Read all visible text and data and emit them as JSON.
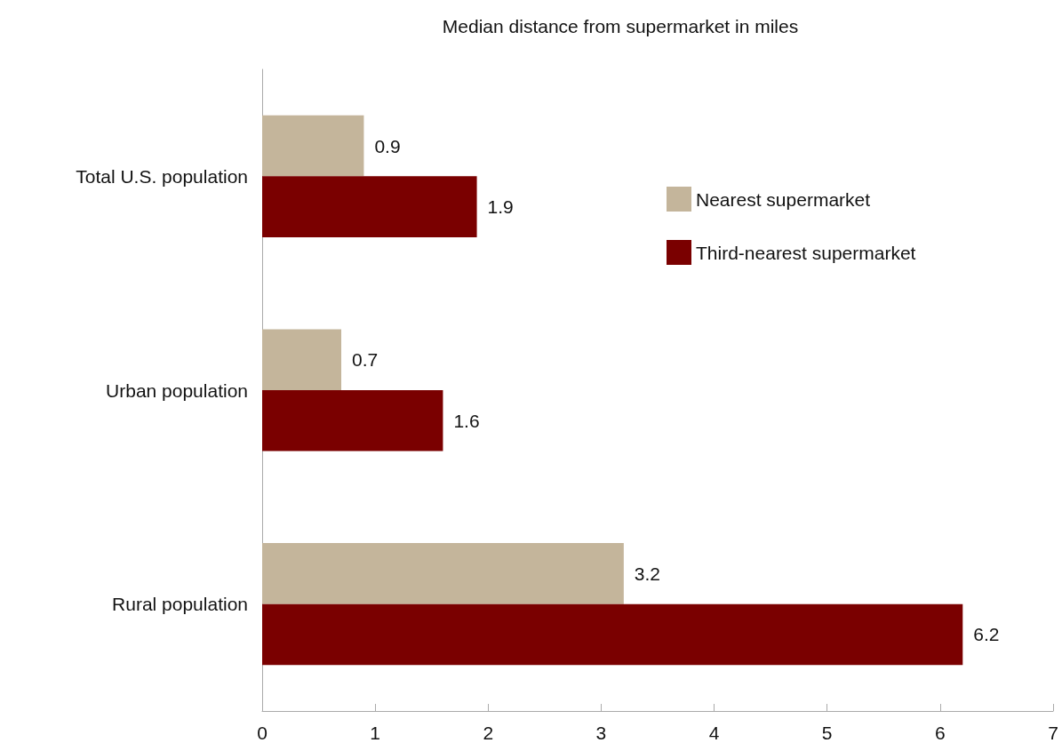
{
  "chart_data": {
    "type": "bar",
    "orientation": "horizontal",
    "title": "Median distance from supermarket in miles",
    "categories": [
      "Total U.S. population",
      "Urban population",
      "Rural population"
    ],
    "series": [
      {
        "name": "Nearest supermarket",
        "color": "#c4b59b",
        "values": [
          0.9,
          0.7,
          3.2
        ]
      },
      {
        "name": "Third-nearest supermarket",
        "color": "#7a0000",
        "values": [
          1.9,
          1.6,
          6.2
        ]
      }
    ],
    "xlim": [
      0,
      7
    ],
    "xticks": [
      0,
      1,
      2,
      3,
      4,
      5,
      6,
      7
    ],
    "grid": false,
    "legend": "top right",
    "data_labels": true
  }
}
